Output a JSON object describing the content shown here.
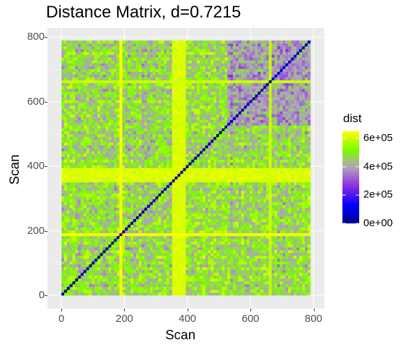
{
  "chart_data": {
    "type": "heatmap",
    "title": "Distance Matrix, d=0.7215",
    "xlabel": "Scan",
    "ylabel": "Scan",
    "x_range": [
      0,
      790
    ],
    "y_range": [
      0,
      790
    ],
    "x_ticks": [
      0,
      200,
      400,
      600,
      800
    ],
    "y_ticks": [
      0,
      200,
      400,
      600,
      800
    ],
    "x_tick_labels": [
      "0",
      "200",
      "400",
      "600",
      "800"
    ],
    "y_tick_labels": [
      "0",
      "200",
      "400",
      "600",
      "800"
    ],
    "grid": true,
    "legend": {
      "title": "dist",
      "placement": "right",
      "breaks": [
        0,
        200000,
        400000,
        600000
      ],
      "labels": [
        "0e+00",
        "2e+05",
        "4e+05",
        "6e+05"
      ],
      "range": [
        0,
        650000
      ],
      "colors": [
        "#00008b",
        "#0000ff",
        "#8a2be2",
        "#b0a0c0",
        "#7cfc00",
        "#ffff00"
      ]
    },
    "bands": [
      {
        "from": 350,
        "to": 395,
        "level": 600000
      },
      {
        "from": 187,
        "to": 192,
        "level": 640000
      },
      {
        "from": 660,
        "to": 668,
        "level": 580000
      }
    ],
    "block_low": {
      "from": 530,
      "to": 790,
      "level": 300000
    },
    "diagonal_value": 0
  }
}
